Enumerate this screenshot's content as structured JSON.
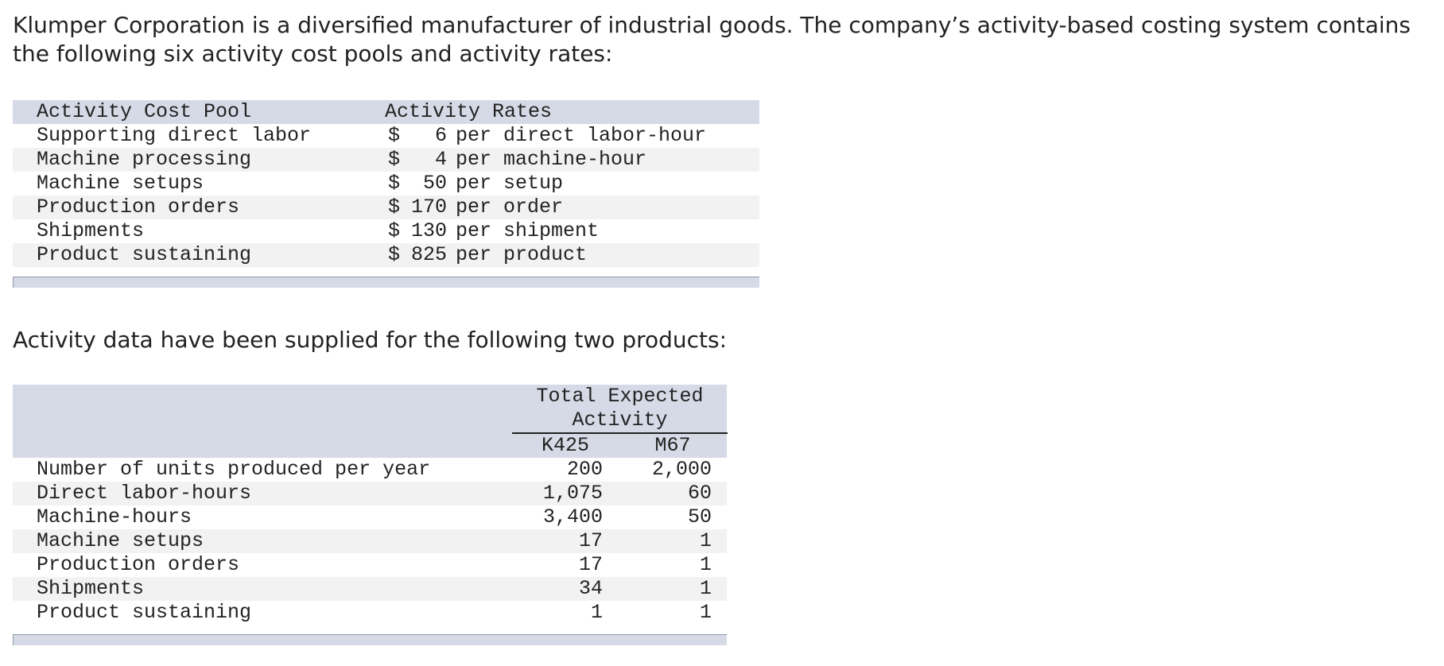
{
  "intro": "Klumper Corporation is a diversified manufacturer of industrial goods. The company’s activity-based costing system contains the following six activity cost pools and activity rates:",
  "table1": {
    "header": [
      "Activity Cost Pool",
      "Activity Rates"
    ],
    "rows": [
      [
        "Supporting direct labor",
        "$",
        "6",
        "per direct labor-hour"
      ],
      [
        "Machine processing",
        "$",
        "4",
        "per machine-hour"
      ],
      [
        "Machine setups",
        "$",
        "50",
        "per setup"
      ],
      [
        "Production orders",
        "$",
        "170",
        "per order"
      ],
      [
        "Shipments",
        "$",
        "130",
        "per shipment"
      ],
      [
        "Product sustaining",
        "$",
        "825",
        "per product"
      ]
    ]
  },
  "intro2": "Activity data have been supplied for the following two products:",
  "table2": {
    "group_header": "Total Expected Activity",
    "columns": [
      "K425",
      "M67"
    ],
    "rows": [
      [
        "Number of units produced per year",
        "200",
        "2,000"
      ],
      [
        "Direct labor-hours",
        "1,075",
        "60"
      ],
      [
        "Machine-hours",
        "3,400",
        "50"
      ],
      [
        "Machine setups",
        "17",
        "1"
      ],
      [
        "Production orders",
        "17",
        "1"
      ],
      [
        "Shipments",
        "34",
        "1"
      ],
      [
        "Product sustaining",
        "1",
        "1"
      ]
    ]
  }
}
